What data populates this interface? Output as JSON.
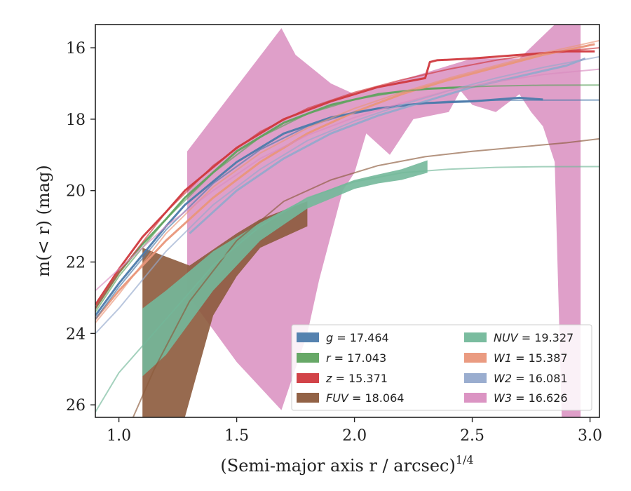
{
  "chart_data": {
    "type": "line",
    "xlabel": "(Semi-major axis r / arcsec)",
    "xlabel_exponent": "1/4",
    "ylabel": "m(< r) (mag)",
    "xlim": [
      0.9,
      3.04
    ],
    "ylim": [
      26.35,
      15.35
    ],
    "y_inverted": true,
    "x_ticks": [
      1.0,
      1.5,
      2.0,
      2.5,
      3.0
    ],
    "x_tick_labels": [
      "1.0",
      "1.5",
      "2.0",
      "2.5",
      "3.0"
    ],
    "y_ticks": [
      16,
      18,
      20,
      22,
      24,
      26
    ],
    "y_tick_labels": [
      "16",
      "18",
      "20",
      "22",
      "24",
      "26"
    ],
    "legend_position": "lower-right",
    "series": [
      {
        "name": "g = 17.464",
        "band": "g",
        "total_mag": "17.464",
        "color": "#4c7bab",
        "fit": [
          [
            0.9,
            23.6
          ],
          [
            1.0,
            22.7
          ],
          [
            1.2,
            21.1
          ],
          [
            1.4,
            19.8
          ],
          [
            1.6,
            18.85
          ],
          [
            1.8,
            18.2
          ],
          [
            2.0,
            17.8
          ],
          [
            2.2,
            17.6
          ],
          [
            2.4,
            17.5
          ],
          [
            2.6,
            17.47
          ],
          [
            2.8,
            17.465
          ],
          [
            3.04,
            17.464
          ]
        ],
        "profile": [
          [
            0.9,
            23.5
          ],
          [
            1.0,
            22.6
          ],
          [
            1.1,
            21.8
          ],
          [
            1.2,
            21.0
          ],
          [
            1.28,
            20.4
          ],
          [
            1.5,
            19.2
          ],
          [
            1.7,
            18.4
          ],
          [
            1.9,
            17.95
          ],
          [
            2.1,
            17.7
          ],
          [
            2.3,
            17.55
          ],
          [
            2.5,
            17.5
          ],
          [
            2.7,
            17.4
          ],
          [
            2.8,
            17.45
          ]
        ]
      },
      {
        "name": "r = 17.043",
        "band": "r",
        "total_mag": "17.043",
        "color": "#5fa35f",
        "fit": [
          [
            0.9,
            23.4
          ],
          [
            1.0,
            22.4
          ],
          [
            1.2,
            20.8
          ],
          [
            1.4,
            19.5
          ],
          [
            1.6,
            18.5
          ],
          [
            1.8,
            17.85
          ],
          [
            2.0,
            17.45
          ],
          [
            2.2,
            17.22
          ],
          [
            2.4,
            17.11
          ],
          [
            2.6,
            17.07
          ],
          [
            2.8,
            17.05
          ],
          [
            3.04,
            17.043
          ]
        ],
        "profile": [
          [
            0.9,
            23.3
          ],
          [
            1.0,
            22.3
          ],
          [
            1.1,
            21.5
          ],
          [
            1.2,
            20.8
          ],
          [
            1.28,
            20.2
          ],
          [
            1.5,
            18.9
          ],
          [
            1.7,
            18.1
          ],
          [
            1.9,
            17.6
          ],
          [
            2.1,
            17.3
          ],
          [
            2.3,
            17.15
          ],
          [
            2.5,
            17.1
          ]
        ]
      },
      {
        "name": "z = 15.371",
        "band": "z",
        "total_mag": "15.371",
        "color": "#d0393e",
        "fit": [
          [
            0.9,
            23.3
          ],
          [
            1.0,
            22.3
          ],
          [
            1.2,
            20.6
          ],
          [
            1.4,
            19.3
          ],
          [
            1.6,
            18.35
          ],
          [
            1.8,
            17.7
          ],
          [
            2.0,
            17.25
          ],
          [
            2.2,
            16.9
          ],
          [
            2.4,
            16.6
          ],
          [
            2.6,
            16.35
          ],
          [
            2.8,
            16.15
          ],
          [
            3.04,
            16.0
          ]
        ],
        "profile": [
          [
            0.9,
            23.2
          ],
          [
            1.0,
            22.2
          ],
          [
            1.1,
            21.3
          ],
          [
            1.2,
            20.6
          ],
          [
            1.28,
            20.0
          ],
          [
            1.5,
            18.8
          ],
          [
            1.7,
            18.0
          ],
          [
            1.9,
            17.5
          ],
          [
            2.1,
            17.1
          ],
          [
            2.3,
            16.85
          ],
          [
            2.32,
            16.4
          ],
          [
            2.35,
            16.35
          ],
          [
            2.5,
            16.3
          ],
          [
            2.7,
            16.2
          ],
          [
            2.9,
            16.1
          ],
          [
            3.02,
            16.1
          ]
        ]
      },
      {
        "name": "FUV = 18.064",
        "band": "FUV",
        "total_mag": "18.064",
        "color": "#8c5a3c",
        "fit": [
          [
            1.06,
            26.35
          ],
          [
            1.15,
            25.0
          ],
          [
            1.3,
            23.1
          ],
          [
            1.5,
            21.4
          ],
          [
            1.7,
            20.3
          ],
          [
            1.9,
            19.7
          ],
          [
            2.1,
            19.3
          ],
          [
            2.3,
            19.05
          ],
          [
            2.5,
            18.9
          ],
          [
            2.7,
            18.78
          ],
          [
            2.9,
            18.66
          ],
          [
            3.04,
            18.55
          ]
        ],
        "band_upper": [
          [
            1.1,
            21.6
          ],
          [
            1.3,
            22.1
          ],
          [
            1.5,
            21.2
          ],
          [
            1.6,
            20.8
          ],
          [
            1.8,
            20.3
          ]
        ],
        "band_lower": [
          [
            1.1,
            26.35
          ],
          [
            1.28,
            26.35
          ],
          [
            1.4,
            23.5
          ],
          [
            1.5,
            22.4
          ],
          [
            1.6,
            21.6
          ],
          [
            1.8,
            21.0
          ]
        ]
      },
      {
        "name": "NUV = 19.327",
        "band": "NUV",
        "total_mag": "19.327",
        "color": "#73b89a",
        "fit": [
          [
            0.9,
            26.2
          ],
          [
            1.0,
            25.1
          ],
          [
            1.2,
            23.6
          ],
          [
            1.4,
            22.1
          ],
          [
            1.6,
            21.0
          ],
          [
            1.8,
            20.2
          ],
          [
            2.0,
            19.75
          ],
          [
            2.2,
            19.5
          ],
          [
            2.4,
            19.4
          ],
          [
            2.6,
            19.35
          ],
          [
            2.8,
            19.33
          ],
          [
            3.04,
            19.327
          ]
        ],
        "band_upper": [
          [
            1.1,
            23.3
          ],
          [
            1.2,
            22.8
          ],
          [
            1.4,
            21.7
          ],
          [
            1.6,
            20.9
          ],
          [
            1.8,
            20.2
          ],
          [
            2.0,
            19.7
          ],
          [
            2.1,
            19.55
          ],
          [
            2.2,
            19.4
          ],
          [
            2.31,
            19.15
          ]
        ],
        "band_lower": [
          [
            1.1,
            25.2
          ],
          [
            1.2,
            24.6
          ],
          [
            1.4,
            22.8
          ],
          [
            1.6,
            21.4
          ],
          [
            1.8,
            20.5
          ],
          [
            2.0,
            19.95
          ],
          [
            2.1,
            19.8
          ],
          [
            2.2,
            19.7
          ],
          [
            2.31,
            19.5
          ]
        ]
      },
      {
        "name": "W1 = 15.387",
        "band": "W1",
        "total_mag": "15.387",
        "color": "#e9967a",
        "fit": [
          [
            0.9,
            23.7
          ],
          [
            1.0,
            22.9
          ],
          [
            1.2,
            21.2
          ],
          [
            1.4,
            19.9
          ],
          [
            1.6,
            18.95
          ],
          [
            1.8,
            18.25
          ],
          [
            2.0,
            17.7
          ],
          [
            2.2,
            17.25
          ],
          [
            2.4,
            16.85
          ],
          [
            2.6,
            16.5
          ],
          [
            2.8,
            16.15
          ],
          [
            3.04,
            15.8
          ]
        ],
        "profile": [
          [
            0.9,
            23.6
          ],
          [
            1.0,
            22.8
          ],
          [
            1.2,
            21.4
          ],
          [
            1.4,
            20.2
          ],
          [
            1.6,
            19.2
          ],
          [
            1.8,
            18.4
          ],
          [
            2.0,
            17.8
          ],
          [
            2.2,
            17.3
          ],
          [
            2.4,
            16.9
          ],
          [
            2.6,
            16.55
          ],
          [
            2.8,
            16.2
          ],
          [
            3.02,
            15.9
          ]
        ]
      },
      {
        "name": "W2 = 16.081",
        "band": "W2",
        "total_mag": "16.081",
        "color": "#95a9cc",
        "fit": [
          [
            0.9,
            24.0
          ],
          [
            1.0,
            23.3
          ],
          [
            1.2,
            21.7
          ],
          [
            1.4,
            20.4
          ],
          [
            1.6,
            19.4
          ],
          [
            1.8,
            18.6
          ],
          [
            2.0,
            18.05
          ],
          [
            2.2,
            17.6
          ],
          [
            2.4,
            17.2
          ],
          [
            2.6,
            16.85
          ],
          [
            2.8,
            16.55
          ],
          [
            3.04,
            16.25
          ]
        ],
        "profile": [
          [
            1.3,
            21.2
          ],
          [
            1.5,
            20.0
          ],
          [
            1.7,
            19.1
          ],
          [
            1.9,
            18.4
          ],
          [
            2.1,
            17.9
          ],
          [
            2.3,
            17.5
          ],
          [
            2.5,
            17.1
          ],
          [
            2.7,
            16.8
          ],
          [
            2.9,
            16.5
          ],
          [
            2.98,
            16.3
          ]
        ]
      },
      {
        "name": "W3 = 16.626",
        "band": "W3",
        "total_mag": "16.626",
        "color": "#d98ec0",
        "fit": [
          [
            0.9,
            22.8
          ],
          [
            1.0,
            22.2
          ],
          [
            1.2,
            21.0
          ],
          [
            1.4,
            20.0
          ],
          [
            1.6,
            19.1
          ],
          [
            1.8,
            18.45
          ],
          [
            2.0,
            17.95
          ],
          [
            2.2,
            17.55
          ],
          [
            2.4,
            17.2
          ],
          [
            2.6,
            16.95
          ],
          [
            2.8,
            16.75
          ],
          [
            3.04,
            16.6
          ]
        ],
        "band_upper": [
          [
            1.29,
            18.9
          ],
          [
            1.69,
            15.45
          ],
          [
            1.75,
            16.2
          ],
          [
            1.9,
            17.0
          ],
          [
            2.0,
            17.3
          ],
          [
            2.1,
            17.1
          ],
          [
            2.3,
            16.7
          ],
          [
            2.5,
            16.3
          ],
          [
            2.7,
            16.3
          ],
          [
            2.85,
            15.35
          ],
          [
            2.96,
            15.35
          ]
        ],
        "band_lower": [
          [
            1.29,
            22.9
          ],
          [
            1.5,
            24.8
          ],
          [
            1.69,
            26.15
          ],
          [
            1.8,
            24.0
          ],
          [
            1.85,
            22.5
          ],
          [
            1.95,
            20.0
          ],
          [
            2.0,
            19.5
          ],
          [
            2.05,
            18.4
          ],
          [
            2.15,
            19.0
          ],
          [
            2.25,
            18.0
          ],
          [
            2.4,
            17.8
          ],
          [
            2.45,
            17.2
          ],
          [
            2.5,
            17.6
          ],
          [
            2.6,
            17.8
          ],
          [
            2.7,
            17.3
          ],
          [
            2.75,
            17.8
          ],
          [
            2.8,
            18.2
          ],
          [
            2.85,
            19.2
          ],
          [
            2.88,
            26.35
          ],
          [
            2.96,
            26.35
          ]
        ]
      }
    ]
  }
}
